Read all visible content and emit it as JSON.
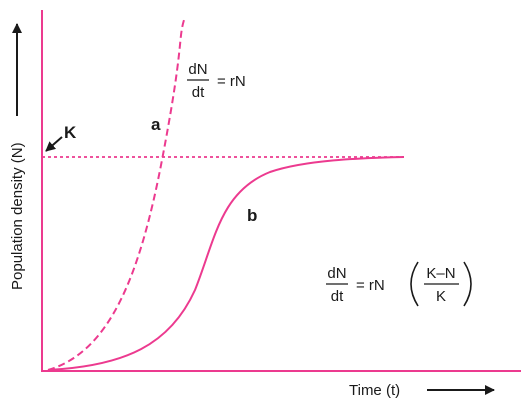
{
  "axes": {
    "y_label": "Population density (N)",
    "x_label": "Time (t)"
  },
  "carrying_capacity_label": "K",
  "curve_a": {
    "label": "a",
    "equation": {
      "numerator": "dN",
      "denominator": "dt",
      "rhs": "= rN"
    }
  },
  "curve_b": {
    "label": "b",
    "equation": {
      "numerator": "dN",
      "denominator": "dt",
      "rhs_prefix": "= rN",
      "factor_numerator": "K–N",
      "factor_denominator": "K"
    }
  },
  "colors": {
    "curve": "#ec3a8f",
    "text": "#1a1a1a"
  }
}
